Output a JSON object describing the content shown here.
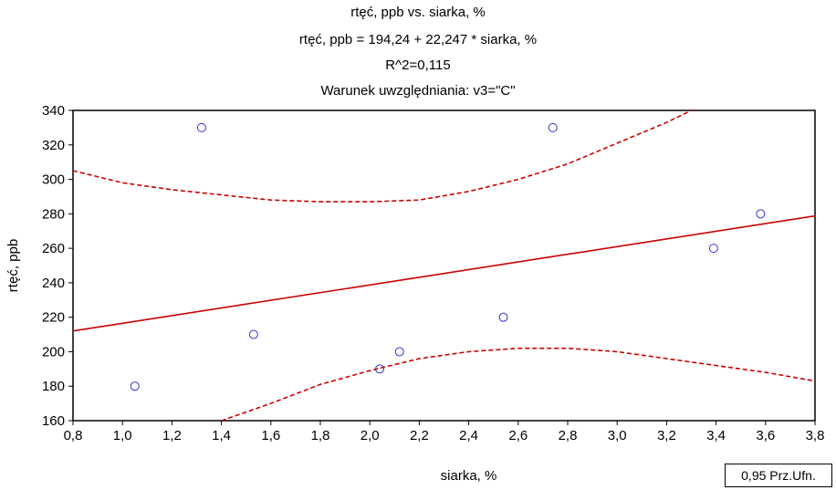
{
  "chart_data": {
    "type": "scatter",
    "title": "rtęć, ppb vs. siarka, %",
    "equation": "rtęć, ppb = 194,24 + 22,247 * siarka, %",
    "r2": "R^2=0,115",
    "condition": "Warunek uwzględniania: v3=\"C\"",
    "xlabel": "siarka, %",
    "ylabel": "rtęć, ppb",
    "xlim": [
      0.8,
      3.8
    ],
    "ylim": [
      160,
      340
    ],
    "xticks": [
      0.8,
      1.0,
      1.2,
      1.4,
      1.6,
      1.8,
      2.0,
      2.2,
      2.4,
      2.6,
      2.8,
      3.0,
      3.2,
      3.4,
      3.6,
      3.8
    ],
    "xtick_labels": [
      "0,8",
      "1,0",
      "1,2",
      "1,4",
      "1,6",
      "1,8",
      "2,0",
      "2,2",
      "2,4",
      "2,6",
      "2,8",
      "3,0",
      "3,2",
      "3,4",
      "3,6",
      "3,8"
    ],
    "yticks": [
      160,
      180,
      200,
      220,
      240,
      260,
      280,
      300,
      320,
      340
    ],
    "ytick_labels": [
      "160",
      "180",
      "200",
      "220",
      "240",
      "260",
      "280",
      "300",
      "320",
      "340"
    ],
    "points": [
      {
        "x": 1.05,
        "y": 180
      },
      {
        "x": 1.32,
        "y": 330
      },
      {
        "x": 1.53,
        "y": 210
      },
      {
        "x": 2.04,
        "y": 190
      },
      {
        "x": 2.12,
        "y": 200
      },
      {
        "x": 2.54,
        "y": 220
      },
      {
        "x": 2.74,
        "y": 330
      },
      {
        "x": 3.39,
        "y": 260
      },
      {
        "x": 3.58,
        "y": 280
      }
    ],
    "regression": {
      "intercept": 194.24,
      "slope": 22.247
    },
    "confidence_upper": [
      [
        0.8,
        305
      ],
      [
        1.0,
        298
      ],
      [
        1.2,
        294
      ],
      [
        1.4,
        291
      ],
      [
        1.6,
        288
      ],
      [
        1.8,
        287
      ],
      [
        2.0,
        287
      ],
      [
        2.2,
        288
      ],
      [
        2.4,
        293
      ],
      [
        2.6,
        300
      ],
      [
        2.8,
        309
      ],
      [
        3.0,
        321
      ],
      [
        3.2,
        333
      ],
      [
        3.3,
        340
      ]
    ],
    "confidence_lower": [
      [
        1.4,
        160
      ],
      [
        1.6,
        170
      ],
      [
        1.8,
        181
      ],
      [
        2.0,
        189
      ],
      [
        2.2,
        196
      ],
      [
        2.4,
        200
      ],
      [
        2.6,
        202
      ],
      [
        2.8,
        202
      ],
      [
        3.0,
        200
      ],
      [
        3.2,
        196
      ],
      [
        3.4,
        192
      ],
      [
        3.6,
        188
      ],
      [
        3.8,
        183
      ]
    ],
    "legend_label": "0,95 Prz.Ufn.",
    "point_color": "#3333cc",
    "line_color": "#cc0000"
  }
}
